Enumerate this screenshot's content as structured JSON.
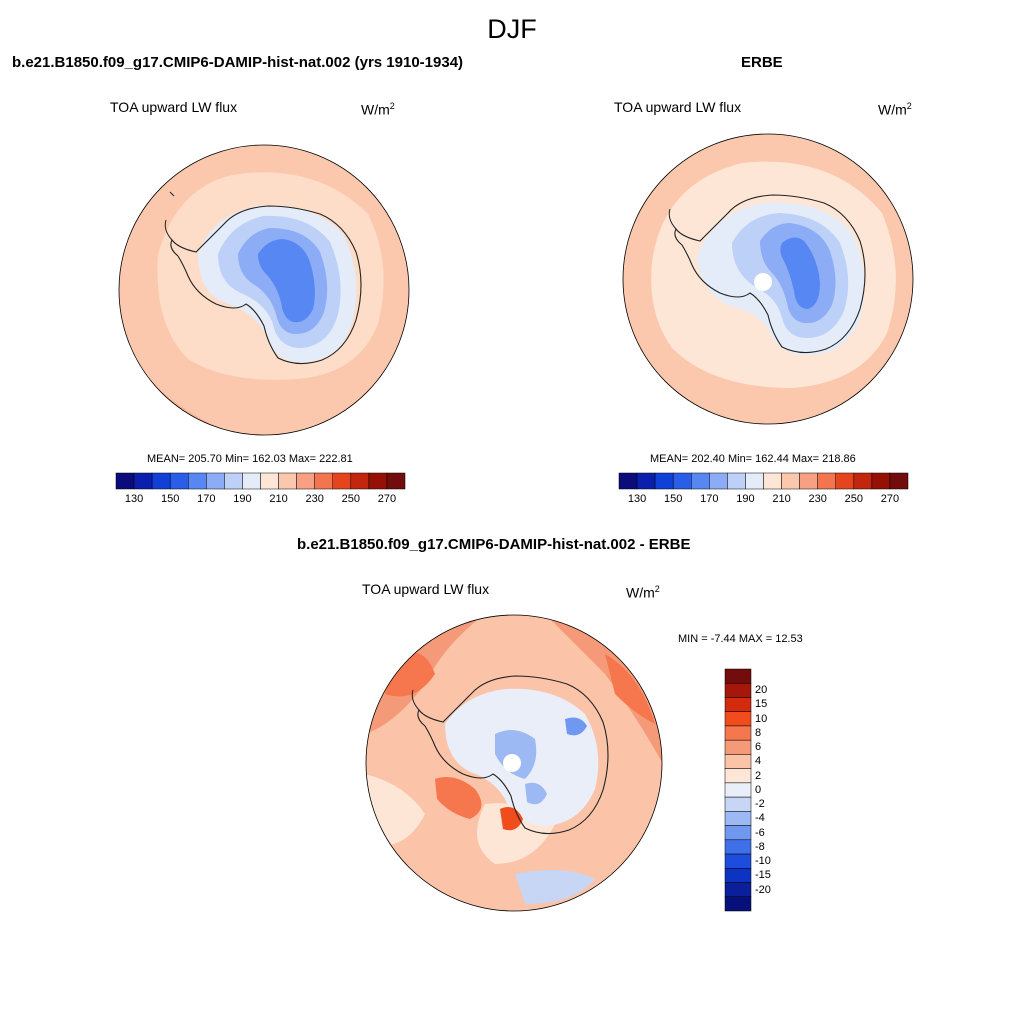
{
  "figure": {
    "season": "DJF"
  },
  "panels": [
    {
      "id": "model",
      "title": "b.e21.B1850.f09_g17.CMIP6-DAMIP-hist-nat.002 (yrs 1910-1934)",
      "variable": "TOA upward LW flux",
      "units_base": "W/m",
      "units_exp": "2",
      "stats": "MEAN= 205.70  Min= 162.03  Max= 222.81",
      "mean": 205.7,
      "min": 162.03,
      "max": 222.81
    },
    {
      "id": "obs",
      "title": "ERBE",
      "variable": "TOA upward LW flux",
      "units_base": "W/m",
      "units_exp": "2",
      "stats": "MEAN= 202.40  Min= 162.44  Max= 218.86",
      "mean": 202.4,
      "min": 162.44,
      "max": 218.86
    },
    {
      "id": "diff",
      "title": "b.e21.B1850.f09_g17.CMIP6-DAMIP-hist-nat.002 - ERBE",
      "variable": "TOA upward LW flux",
      "units_base": "W/m",
      "units_exp": "2",
      "stats": "MIN =  -7.44 MAX =  12.53",
      "min": -7.44,
      "max": 12.53
    }
  ],
  "colorbars": {
    "absolute": {
      "colors": [
        "#0b0b7c",
        "#0b1fae",
        "#1140d8",
        "#2a5ee8",
        "#5687f2",
        "#8cadf6",
        "#bdd0f7",
        "#e4ecf9",
        "#fde6d5",
        "#fbc7ad",
        "#f7a083",
        "#f4744e",
        "#e6441c",
        "#c2260e",
        "#961105",
        "#730c0c"
      ],
      "labels": [
        "130",
        "150",
        "170",
        "190",
        "210",
        "230",
        "250",
        "270"
      ]
    },
    "difference": {
      "colors": [
        "#730c0c",
        "#a5170a",
        "#d22b0e",
        "#f14d1c",
        "#f6764d",
        "#f59a79",
        "#fbc3a8",
        "#fde6d5",
        "#e9eef8",
        "#c7d6f4",
        "#9cb9f4",
        "#6f99f1",
        "#3f70ea",
        "#1d4ddd",
        "#0d33c2",
        "#0b1f9c",
        "#06107a"
      ],
      "labels": [
        "20",
        "15",
        "10",
        "8",
        "6",
        "4",
        "2",
        "0",
        "-2",
        "-4",
        "-6",
        "-8",
        "-10",
        "-15",
        "-20"
      ]
    }
  }
}
